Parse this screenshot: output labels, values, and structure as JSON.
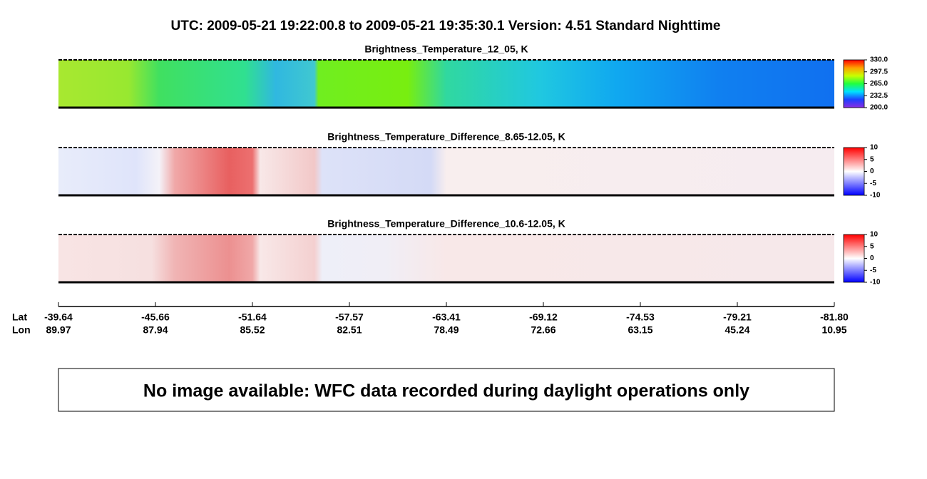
{
  "title": "UTC:  2009-05-21   19:22:00.8  to  2009-05-21   19:35:30.1    Version: 4.51  Standard Nighttime",
  "chart_data": [
    {
      "type": "heatmap",
      "title": "Brightness_Temperature_12_05, K",
      "clim": [
        200,
        330
      ],
      "cticks": [
        {
          "value": 330,
          "label": "330.0"
        },
        {
          "value": 297.5,
          "label": "297.5"
        },
        {
          "value": 265,
          "label": "265.0"
        },
        {
          "value": 232.5,
          "label": "232.5"
        },
        {
          "value": 200,
          "label": "200.0"
        }
      ],
      "colormap": [
        "#8a2be2",
        "#1e40ff",
        "#00e0ff",
        "#20ff40",
        "#c8ff00",
        "#ffa000",
        "#ff0000"
      ]
    },
    {
      "type": "heatmap",
      "title": "Brightness_Temperature_Difference_8.65-12.05, K",
      "clim": [
        -10,
        10
      ],
      "cticks": [
        10,
        5,
        0,
        -5,
        -10
      ],
      "colormap": [
        "#0000ff",
        "#8080ff",
        "#ffffff",
        "#ff8080",
        "#ff0000"
      ]
    },
    {
      "type": "heatmap",
      "title": "Brightness_Temperature_Difference_10.6-12.05, K",
      "clim": [
        -10,
        10
      ],
      "cticks": [
        10,
        5,
        0,
        -5,
        -10
      ],
      "colormap": [
        "#0000ff",
        "#8080ff",
        "#ffffff",
        "#ff8080",
        "#ff0000"
      ]
    }
  ],
  "x_axis": {
    "row_labels": [
      "Lat",
      "Lon"
    ],
    "lat": [
      "-39.64",
      "-45.66",
      "-51.64",
      "-57.57",
      "-63.41",
      "-69.12",
      "-74.53",
      "-79.21",
      "-81.80"
    ],
    "lon": [
      "89.97",
      "87.94",
      "85.52",
      "82.51",
      "78.49",
      "72.66",
      "63.15",
      "45.24",
      "10.95"
    ]
  },
  "note": "No image available: WFC data recorded during daylight operations only"
}
